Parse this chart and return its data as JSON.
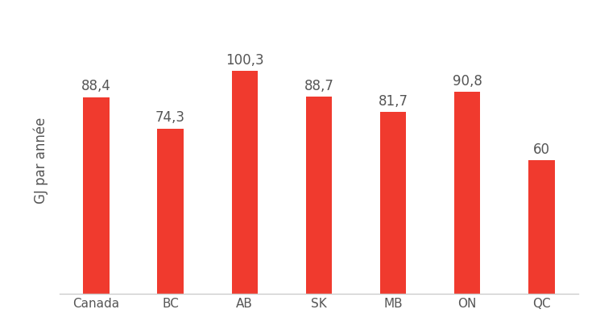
{
  "categories": [
    "Canada",
    "BC",
    "AB",
    "SK",
    "MB",
    "ON",
    "QC"
  ],
  "values": [
    88.4,
    74.3,
    100.3,
    88.7,
    81.7,
    90.8,
    60
  ],
  "labels": [
    "88,4",
    "74,3",
    "100,3",
    "88,7",
    "81,7",
    "90,8",
    "60"
  ],
  "bar_color": "#f03a2e",
  "ylabel": "GJ par année",
  "background_color": "#ffffff",
  "ylim": [
    0,
    120
  ],
  "bar_width": 0.35,
  "label_fontsize": 12,
  "tick_fontsize": 11,
  "ylabel_fontsize": 12,
  "label_color": "#555555",
  "tick_color": "#555555",
  "spine_color": "#cccccc"
}
